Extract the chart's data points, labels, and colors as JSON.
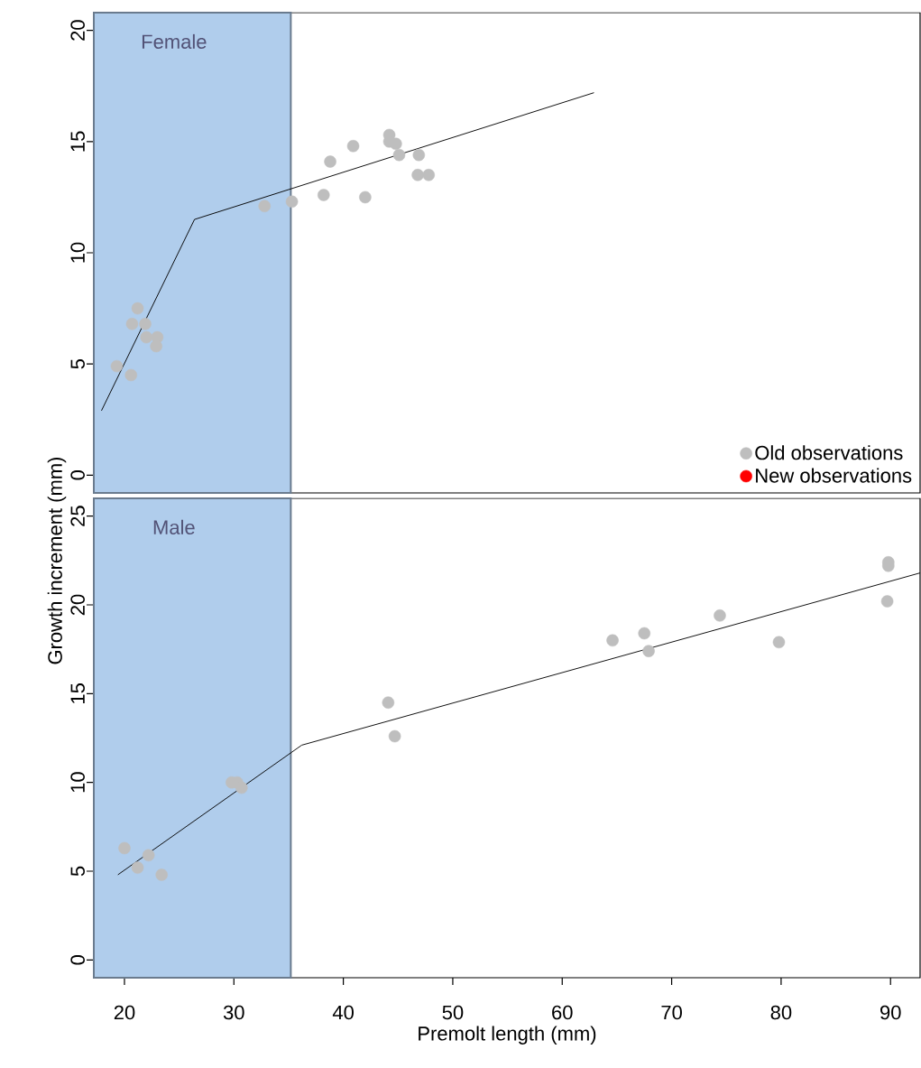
{
  "chart_data": [
    {
      "type": "scatter",
      "title": "Female",
      "xlim": [
        17.2,
        92.7
      ],
      "ylim": [
        -0.8,
        20.8
      ],
      "yticks": [
        0,
        5,
        10,
        15,
        20
      ],
      "tick_labels": "y",
      "legend": "bottom right",
      "bands": [
        {
          "axis": "x",
          "from": 17.2,
          "to": 35.2,
          "color": "#b0cdec"
        }
      ],
      "series": [
        {
          "name": "Old observations",
          "marker": "circle",
          "color": "#bebebe",
          "x": [
            19.3,
            20.6,
            21.2,
            20.7,
            21.9,
            22.0,
            23.0,
            22.9,
            32.8,
            35.3,
            38.2,
            38.8,
            40.9,
            42.0,
            44.2,
            44.2,
            44.8,
            45.1,
            46.9,
            46.8,
            47.8
          ],
          "values": [
            4.9,
            4.5,
            7.5,
            6.8,
            6.8,
            6.2,
            6.2,
            5.8,
            12.1,
            12.3,
            12.6,
            14.1,
            14.8,
            12.5,
            15.3,
            15.0,
            14.9,
            14.4,
            14.4,
            13.5,
            13.5
          ]
        },
        {
          "name": "New observations",
          "marker": "circle",
          "color": "#ff0000"
        },
        {
          "type": "line",
          "marker": "none",
          "color": "#000000",
          "x": [
            17.9,
            26.4,
            62.9
          ],
          "values": [
            2.9,
            11.5,
            17.2
          ]
        }
      ]
    },
    {
      "type": "scatter",
      "title": "Male",
      "xlabel": "Premolt length (mm)",
      "ylabel": "Growth increment (mm)",
      "xlim": [
        17.2,
        92.7
      ],
      "ylim": [
        -1.0,
        26.0
      ],
      "xticks": [
        20,
        30,
        40,
        50,
        60,
        70,
        80,
        90
      ],
      "yticks": [
        0,
        5,
        10,
        15,
        20,
        25
      ],
      "bands": [
        {
          "axis": "x",
          "from": 17.2,
          "to": 35.2,
          "color": "#b0cdec"
        }
      ],
      "series": [
        {
          "marker": "circle",
          "color": "#bebebe",
          "x": [
            20.0,
            21.2,
            22.2,
            23.4,
            29.8,
            30.3,
            30.7,
            44.1,
            44.7,
            64.6,
            67.5,
            67.9,
            74.4,
            79.8,
            89.7,
            89.8,
            89.8
          ],
          "values": [
            6.3,
            5.2,
            5.9,
            4.8,
            10.0,
            10.0,
            9.7,
            14.5,
            12.6,
            18.0,
            18.4,
            17.4,
            19.4,
            17.9,
            20.2,
            22.4,
            22.2
          ]
        },
        {
          "type": "line",
          "marker": "none",
          "color": "#000000",
          "x": [
            19.4,
            36.2,
            92.7
          ],
          "values": [
            4.8,
            12.1,
            21.8
          ]
        }
      ]
    }
  ]
}
